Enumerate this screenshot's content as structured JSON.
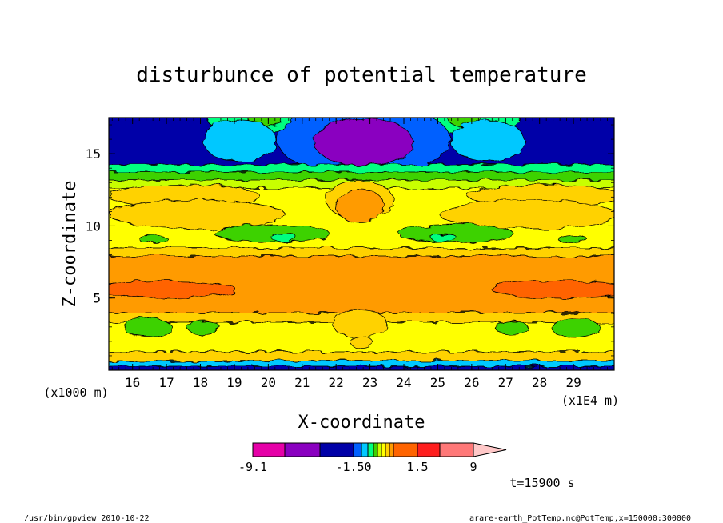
{
  "chart_data": {
    "type": "heatmap",
    "title": "disturbunce of potential temperature",
    "xlabel": "X-coordinate",
    "ylabel": "Z-coordinate",
    "x_unit": "(x1E4 m)",
    "y_unit": "(x1000 m)",
    "x_ticks": [
      "16",
      "17",
      "18",
      "19",
      "20",
      "21",
      "22",
      "23",
      "24",
      "25",
      "26",
      "27",
      "28",
      "29"
    ],
    "y_ticks": [
      "5",
      "10",
      "15"
    ],
    "xlim": [
      15.3,
      30.2
    ],
    "ylim": [
      0,
      17.5
    ],
    "colorbar_labels": [
      "-9.1",
      "-1.50",
      "1.5",
      "9"
    ],
    "colorbar_levels": [
      -9.1,
      -6,
      -3,
      -1.5,
      -1,
      -0.5,
      -0.25,
      0,
      0.25,
      0.5,
      1,
      1.5,
      3,
      6,
      9
    ],
    "palette": [
      "#e600a8",
      "#8a00c0",
      "#0000a8",
      "#0060ff",
      "#00c8ff",
      "#00ff80",
      "#3cd200",
      "#c8ff00",
      "#ffff00",
      "#ffd200",
      "#ff9b00",
      "#ff6400",
      "#ff1e1e",
      "#ff7878",
      "#ffc8c8"
    ],
    "time_label": "t=15900 s"
  },
  "footer": {
    "left": "/usr/bin/gpview  2010-10-22",
    "right": "arare-earth_PotTemp.nc@PotTemp,x=150000:300000"
  }
}
